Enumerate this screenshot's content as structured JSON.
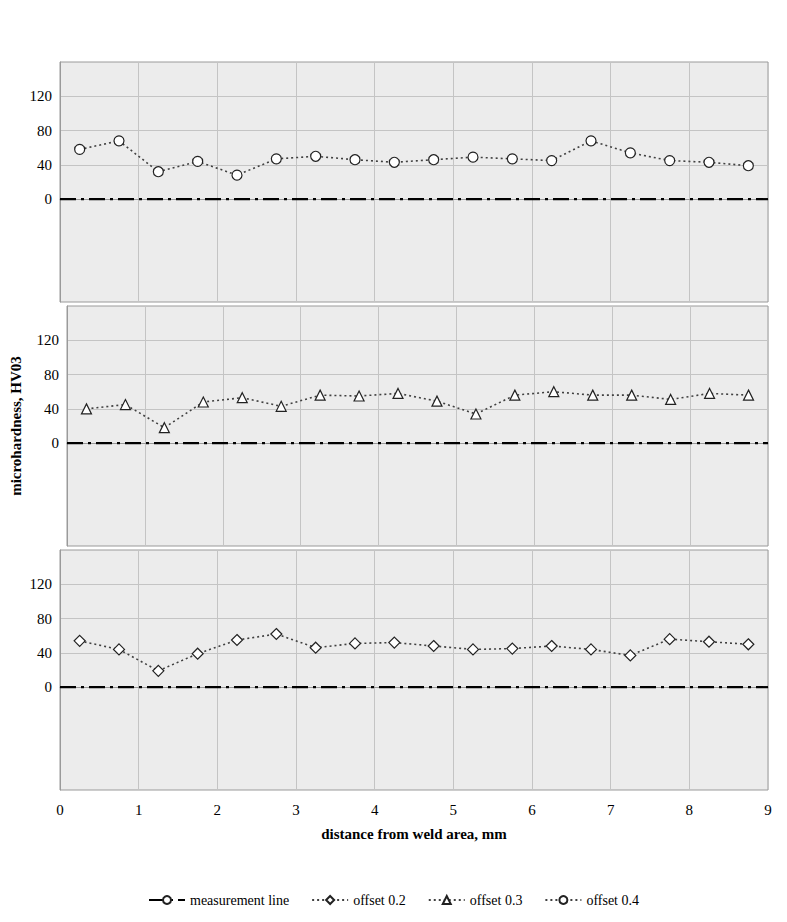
{
  "chart_data": [
    {
      "type": "line",
      "x": [
        0.25,
        0.75,
        1.25,
        1.75,
        2.25,
        2.75,
        3.25,
        3.75,
        4.25,
        4.75,
        5.25,
        5.75,
        6.25,
        6.75,
        7.25,
        7.75,
        8.25,
        8.75
      ],
      "series": [
        {
          "name": "measurement line",
          "x": [
            0,
            9
          ],
          "values": [
            0,
            0
          ],
          "color": "#000000",
          "marker": "none",
          "line_style": "dashdot"
        },
        {
          "name": "offset 0.4",
          "values": [
            58,
            68,
            32,
            44,
            28,
            47,
            50,
            46,
            43,
            46,
            49,
            47,
            45,
            68,
            54,
            45,
            43,
            39
          ],
          "color": "#404040",
          "marker": "circle",
          "line_style": "dotted"
        }
      ],
      "xlim": [
        0,
        9
      ],
      "xticks": [
        0,
        1,
        2,
        3,
        4,
        5,
        6,
        7,
        8,
        9
      ],
      "ylim": [
        -120,
        160
      ],
      "yticks": [
        0,
        40,
        80,
        120
      ],
      "grid": true,
      "tick_labels": "y"
    },
    {
      "type": "line",
      "x": [
        0.25,
        0.75,
        1.25,
        1.75,
        2.25,
        2.75,
        3.25,
        3.75,
        4.25,
        4.75,
        5.25,
        5.75,
        6.25,
        6.75,
        7.25,
        7.75,
        8.25,
        8.75
      ],
      "series": [
        {
          "name": "measurement line",
          "x": [
            0,
            9
          ],
          "values": [
            0,
            0
          ],
          "color": "#000000",
          "marker": "none",
          "line_style": "dashdot"
        },
        {
          "name": "offset 0.3",
          "values": [
            40,
            45,
            18,
            48,
            53,
            43,
            56,
            55,
            58,
            49,
            34,
            56,
            60,
            56,
            56,
            51,
            58,
            56
          ],
          "color": "#404040",
          "marker": "triangle",
          "line_style": "dotted"
        }
      ],
      "ylabel": "microhardness, HV03",
      "xlim": [
        0,
        9
      ],
      "xticks": [
        0,
        1,
        2,
        3,
        4,
        5,
        6,
        7,
        8,
        9
      ],
      "ylim": [
        -120,
        160
      ],
      "yticks": [
        0,
        40,
        80,
        120
      ],
      "grid": true,
      "tick_labels": "y"
    },
    {
      "type": "line",
      "x": [
        0.25,
        0.75,
        1.25,
        1.75,
        2.25,
        2.75,
        3.25,
        3.75,
        4.25,
        4.75,
        5.25,
        5.75,
        6.25,
        6.75,
        7.25,
        7.75,
        8.25,
        8.75
      ],
      "series": [
        {
          "name": "measurement line",
          "x": [
            0,
            9
          ],
          "values": [
            0,
            0
          ],
          "color": "#000000",
          "marker": "none",
          "line_style": "dashdot"
        },
        {
          "name": "offset 0.2",
          "values": [
            54,
            44,
            19,
            39,
            55,
            62,
            46,
            51,
            52,
            48,
            44,
            45,
            48,
            44,
            37,
            56,
            53,
            50
          ],
          "color": "#404040",
          "marker": "diamond",
          "line_style": "dotted"
        }
      ],
      "xlabel": "distance from weld area, mm",
      "xlim": [
        0,
        9
      ],
      "xticks": [
        0,
        1,
        2,
        3,
        4,
        5,
        6,
        7,
        8,
        9
      ],
      "ylim": [
        -120,
        160
      ],
      "yticks": [
        0,
        40,
        80,
        120
      ],
      "grid": true,
      "legend": "bottom"
    }
  ]
}
